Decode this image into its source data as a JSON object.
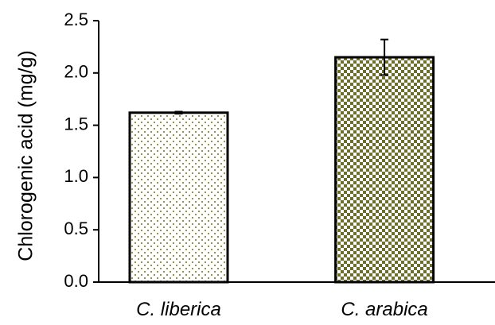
{
  "chart_data": {
    "type": "bar",
    "title": "",
    "xlabel": "",
    "ylabel": "Chlorogenic acid (mg/g)",
    "categories": [
      "C. liberica",
      "C. arabica"
    ],
    "values": [
      1.62,
      2.15
    ],
    "errors": [
      0.01,
      0.17
    ],
    "ylim": [
      0,
      2.5
    ],
    "yticks": [
      "0.0",
      "0.5",
      "1.0",
      "1.5",
      "2.0",
      "2.5"
    ],
    "grid": false,
    "legend": "none",
    "colors": {
      "bar_pattern": "#8a8a3a",
      "bar_fill": "#ffffff",
      "axis": "#000000"
    }
  }
}
